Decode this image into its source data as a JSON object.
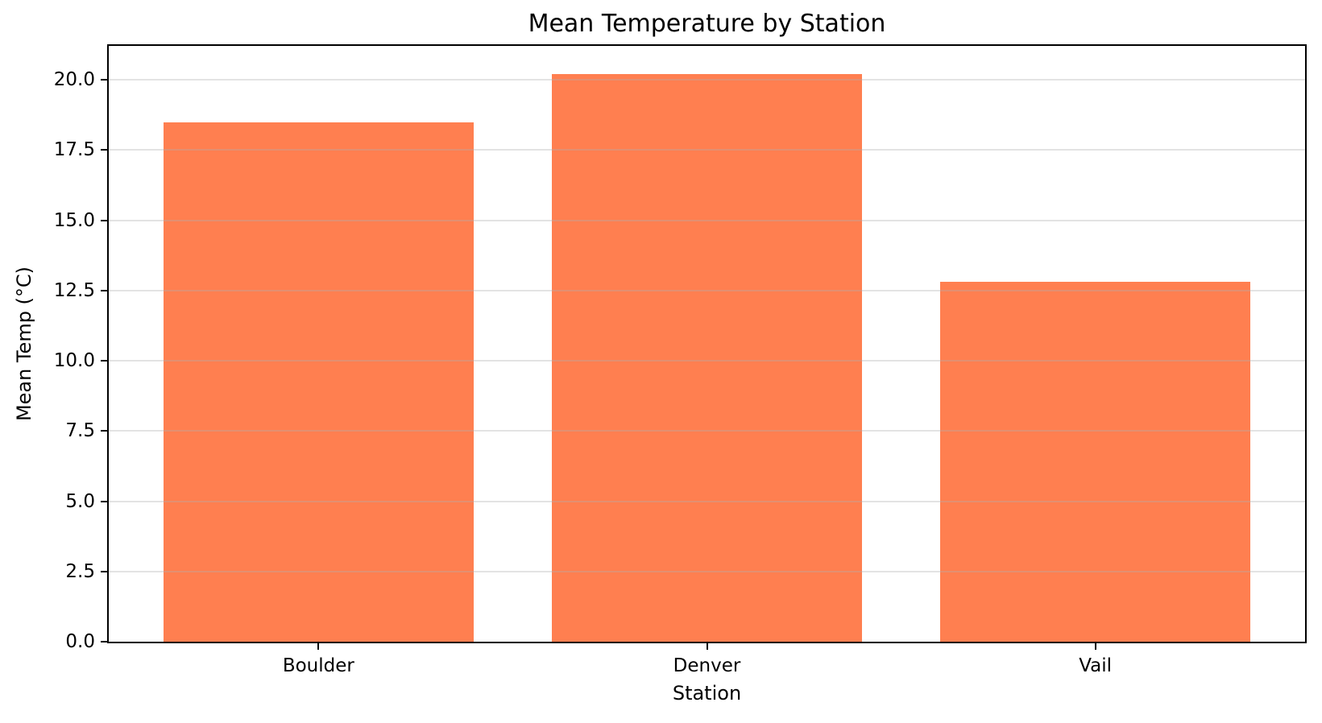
{
  "figure": {
    "background": "#ffffff",
    "spine_color": "#000000",
    "tick_color": "#000000",
    "text_color": "#000000"
  },
  "chart_data": {
    "type": "bar",
    "title": "Mean Temperature by Station",
    "xlabel": "Station",
    "ylabel": "Mean Temp (°C)",
    "categories": [
      "Boulder",
      "Denver",
      "Vail"
    ],
    "values": [
      18.5,
      20.2,
      12.8
    ],
    "series": [
      {
        "name": "Mean Temp (°C)",
        "values": [
          18.5,
          20.2,
          12.8
        ]
      }
    ],
    "bar_color": "#FF7F50",
    "ylim": [
      0,
      21.21
    ],
    "yticks": [
      0.0,
      2.5,
      5.0,
      7.5,
      10.0,
      12.5,
      15.0,
      17.5,
      20.0
    ],
    "ytick_labels": [
      "0.0",
      "2.5",
      "5.0",
      "7.5",
      "10.0",
      "12.5",
      "15.0",
      "17.5",
      "20.0"
    ],
    "grid": "horizontal",
    "grid_color": "rgba(176,176,176,0.35)",
    "grid_above_bars": true,
    "legend_position": "none",
    "bar_width_fraction": 0.8,
    "x_axis_padding_units": 0.54,
    "x_total_units": 3.08
  }
}
